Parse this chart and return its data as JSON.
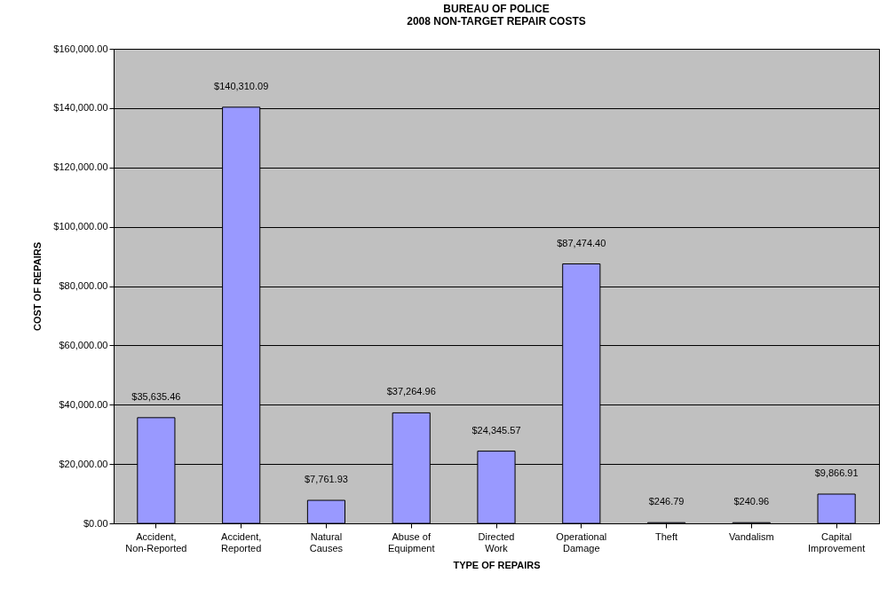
{
  "chart_data": {
    "type": "bar",
    "title": "BUREAU OF POLICE",
    "subtitle": "2008 NON-TARGET REPAIR COSTS",
    "xlabel": "TYPE OF REPAIRS",
    "ylabel": "COST OF REPAIRS",
    "categories": [
      "Accident, Non-Reported",
      "Accident, Reported",
      "Natural Causes",
      "Abuse of Equipment",
      "Directed Work",
      "Operational Damage",
      "Theft",
      "Vandalism",
      "Capital Improvement"
    ],
    "values": [
      35635.46,
      140310.09,
      7761.93,
      37264.96,
      24345.57,
      87474.4,
      246.79,
      240.96,
      9866.91
    ],
    "color": "#9999ff",
    "ylim": [
      0,
      160000
    ],
    "yticks": [
      {
        "value": 0,
        "label": "$0.00"
      },
      {
        "value": 20000,
        "label": "$20,000.00"
      },
      {
        "value": 40000,
        "label": "$40,000.00"
      },
      {
        "value": 60000,
        "label": "$60,000.00"
      },
      {
        "value": 80000,
        "label": "$80,000.00"
      },
      {
        "value": 100000,
        "label": "$100,000.00"
      },
      {
        "value": 120000,
        "label": "$120,000.00"
      },
      {
        "value": 140000,
        "label": "$140,000.00"
      },
      {
        "value": 160000,
        "label": "$160,000.00"
      }
    ],
    "value_labels": [
      "$35,635.46",
      "$140,310.09",
      "$7,761.93",
      "$37,264.96",
      "$24,345.57",
      "$87,474.40",
      "$246.79",
      "$240.96",
      "$9,866.91"
    ],
    "grid": "y"
  }
}
